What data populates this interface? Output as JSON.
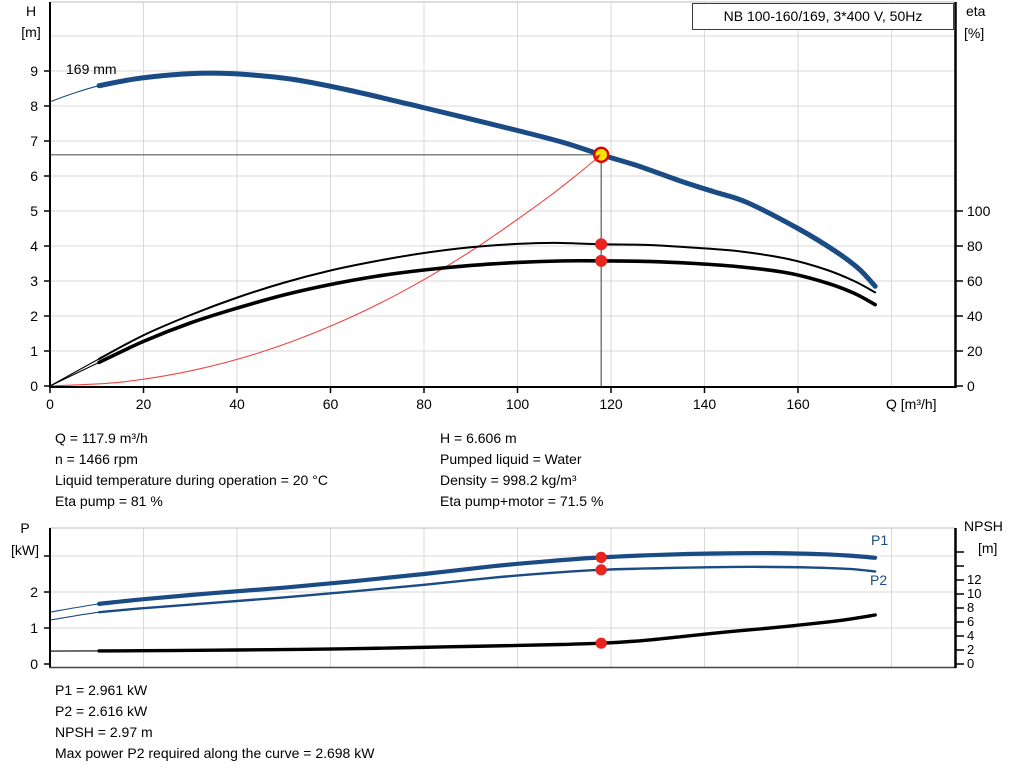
{
  "title_box": "NB 100-160/169, 3*400 V, 50Hz",
  "labels": {
    "h": "H",
    "h_unit": "[m]",
    "eta": "eta",
    "eta_unit": "[%]",
    "p": "P",
    "p_unit": "[kW]",
    "npsh": "NPSH",
    "npsh_unit": "[m]",
    "q_axis": "Q [m³/h]",
    "impeller": "169 mm",
    "p1": "P1",
    "p2": "P2"
  },
  "info": {
    "left": [
      "Q = 117.9 m³/h",
      "n = 1466 rpm",
      "Liquid temperature during operation = 20 °C",
      "Eta pump = 81 %"
    ],
    "right": [
      "H = 6.606 m",
      "Pumped liquid = Water",
      "Density = 998.2 kg/m³",
      "Eta pump+motor = 71.5 %"
    ]
  },
  "results": [
    "P1 = 2.961 kW",
    "P2 = 2.616 kW",
    "NPSH = 2.97 m",
    "Max power P2 required along the curve = 2.698 kW"
  ],
  "colors": {
    "curve_blue": "#1a4b85",
    "marker_red": "#e8251f",
    "duty_fill": "#f5e500",
    "duty_ring": "#dd0000",
    "system_red": "#ef4444",
    "grid": "#d9d9d9",
    "crosshair": "#5a5a5a",
    "black": "#000000"
  },
  "chart_data": [
    {
      "type": "line",
      "title": "NB 100-160/169, 3*400 V, 50Hz",
      "curve_label": "169 mm",
      "x_axis": {
        "label": "Q [m³/h]",
        "min": 0,
        "max": 193.6,
        "ticks": [
          0,
          20,
          40,
          60,
          80,
          100,
          120,
          140,
          160
        ],
        "gridlines": [
          20,
          40,
          60,
          80,
          100,
          120,
          140,
          160,
          180
        ]
      },
      "y_axis": {
        "label": "H [m]",
        "min": 0,
        "max": 11,
        "ticks": [
          0,
          1,
          2,
          3,
          4,
          5,
          6,
          7,
          8,
          9
        ],
        "gridlines": [
          1,
          2,
          3,
          4,
          5,
          6,
          7,
          8,
          9,
          10
        ]
      },
      "y2_axis": {
        "label": "eta [%]",
        "min": 0,
        "ticks": [
          0,
          20,
          40,
          60,
          80,
          100
        ]
      },
      "duty_point": {
        "Q": 117.9,
        "H": 6.606
      },
      "series": [
        {
          "name": "system-resistance-curve",
          "color": "#ef4444",
          "width": 1,
          "axis": "y",
          "points": [
            [
              0,
              0
            ],
            [
              15,
              0.11
            ],
            [
              30,
              0.43
            ],
            [
              45,
              0.96
            ],
            [
              60,
              1.71
            ],
            [
              75,
              2.67
            ],
            [
              90,
              3.85
            ],
            [
              105,
              5.24
            ],
            [
              112,
              5.96
            ],
            [
              117.9,
              6.606
            ]
          ]
        },
        {
          "name": "eta-pump-motor-curve",
          "color": "#000000",
          "width": 3.6,
          "thin_until": 10.5,
          "axis": "y2",
          "points": [
            [
              0,
              0
            ],
            [
              10.5,
              13.5
            ],
            [
              20,
              25.5
            ],
            [
              30,
              36
            ],
            [
              40,
              44.5
            ],
            [
              50,
              52
            ],
            [
              60,
              58
            ],
            [
              70,
              62.8
            ],
            [
              80,
              66.3
            ],
            [
              90,
              68.9
            ],
            [
              100,
              70.6
            ],
            [
              110,
              71.5
            ],
            [
              117.9,
              71.5
            ],
            [
              128,
              71.2
            ],
            [
              138,
              70
            ],
            [
              148,
              68
            ],
            [
              158,
              64.5
            ],
            [
              166,
              59
            ],
            [
              172,
              53
            ],
            [
              176.5,
              46.5
            ]
          ]
        },
        {
          "name": "eta-pump-curve",
          "color": "#000000",
          "width": 2,
          "thin_until": 10.5,
          "axis": "y2",
          "points": [
            [
              0,
              0
            ],
            [
              10.5,
              15.5
            ],
            [
              20,
              29
            ],
            [
              30,
              40.5
            ],
            [
              40,
              50.5
            ],
            [
              50,
              59
            ],
            [
              60,
              66
            ],
            [
              70,
              71.5
            ],
            [
              80,
              76
            ],
            [
              90,
              79.3
            ],
            [
              100,
              81.2
            ],
            [
              108,
              81.8
            ],
            [
              117.9,
              81
            ],
            [
              128,
              80.6
            ],
            [
              138,
              79
            ],
            [
              148,
              76.8
            ],
            [
              158,
              72.5
            ],
            [
              166,
              66.5
            ],
            [
              172,
              60
            ],
            [
              176.5,
              53.5
            ]
          ]
        },
        {
          "name": "head-curve",
          "color": "#1a4b85",
          "width": 5,
          "thin_until": 10.5,
          "axis": "y",
          "points": [
            [
              0,
              8.12
            ],
            [
              5,
              8.36
            ],
            [
              10.5,
              8.58
            ],
            [
              18,
              8.77
            ],
            [
              26,
              8.89
            ],
            [
              34,
              8.94
            ],
            [
              42,
              8.9
            ],
            [
              52,
              8.76
            ],
            [
              64,
              8.45
            ],
            [
              80,
              7.95
            ],
            [
              100,
              7.3
            ],
            [
              110,
              6.95
            ],
            [
              117.9,
              6.606
            ],
            [
              126,
              6.28
            ],
            [
              135,
              5.85
            ],
            [
              142,
              5.55
            ],
            [
              149,
              5.25
            ],
            [
              160,
              4.5
            ],
            [
              168,
              3.85
            ],
            [
              173,
              3.35
            ],
            [
              176.5,
              2.85
            ]
          ]
        }
      ],
      "markers": [
        {
          "name": "duty-point",
          "style": "ring",
          "axis": "y",
          "Q": 117.9,
          "v": 6.606
        },
        {
          "name": "eta-pump-point",
          "style": "dot",
          "axis": "y2",
          "Q": 117.9,
          "v": 81
        },
        {
          "name": "eta-pump-motor-point",
          "style": "dot",
          "axis": "y2",
          "Q": 117.9,
          "v": 71.5
        }
      ]
    },
    {
      "type": "line",
      "x_axis": {
        "label": "",
        "min": 0,
        "max": 193.6,
        "ticks": [],
        "gridlines": [
          20,
          40,
          60,
          80,
          100,
          120,
          140,
          160,
          180
        ]
      },
      "y_axis": {
        "label": "P [kW]",
        "min": 0,
        "max": 3.78,
        "ticks": [
          0,
          1,
          2,
          3
        ],
        "labeled_ticks": [
          0,
          1,
          2
        ],
        "gridlines": [
          1,
          2,
          3
        ]
      },
      "y2_axis": {
        "label": "NPSH [m]",
        "min": 0,
        "max": 16,
        "ticks": [
          0,
          2,
          4,
          6,
          8,
          10,
          12,
          14,
          16
        ],
        "labeled_ticks": [
          0,
          2,
          4,
          6,
          8,
          10,
          12
        ]
      },
      "series": [
        {
          "name": "npsh-curve",
          "color": "#000000",
          "width": 3.4,
          "thin_until": 10.5,
          "axis": "y2",
          "points": [
            [
              0,
              1.85
            ],
            [
              10.5,
              1.87
            ],
            [
              25,
              1.92
            ],
            [
              40,
              2.0
            ],
            [
              55,
              2.1
            ],
            [
              70,
              2.25
            ],
            [
              85,
              2.45
            ],
            [
              100,
              2.65
            ],
            [
              110,
              2.8
            ],
            [
              117.9,
              2.97
            ],
            [
              126,
              3.3
            ],
            [
              135,
              3.9
            ],
            [
              145,
              4.6
            ],
            [
              155,
              5.2
            ],
            [
              165,
              5.9
            ],
            [
              171,
              6.4
            ],
            [
              176.5,
              7.0
            ]
          ]
        },
        {
          "name": "p2-curve",
          "label": "P2",
          "color": "#1a4b85",
          "width": 2.4,
          "thin_until": 10.5,
          "axis": "y",
          "points": [
            [
              0,
              1.22
            ],
            [
              10.5,
              1.44
            ],
            [
              20,
              1.55
            ],
            [
              35,
              1.7
            ],
            [
              50,
              1.85
            ],
            [
              65,
              2.02
            ],
            [
              80,
              2.2
            ],
            [
              95,
              2.4
            ],
            [
              107,
              2.53
            ],
            [
              117.9,
              2.616
            ],
            [
              130,
              2.66
            ],
            [
              142,
              2.69
            ],
            [
              152,
              2.698
            ],
            [
              163,
              2.68
            ],
            [
              171,
              2.64
            ],
            [
              176.5,
              2.57
            ]
          ]
        },
        {
          "name": "p1-curve",
          "label": "P1",
          "color": "#1a4b85",
          "width": 4.2,
          "thin_until": 10.5,
          "axis": "y",
          "points": [
            [
              0,
              1.44
            ],
            [
              10.5,
              1.67
            ],
            [
              20,
              1.8
            ],
            [
              35,
              1.97
            ],
            [
              50,
              2.12
            ],
            [
              65,
              2.3
            ],
            [
              80,
              2.5
            ],
            [
              95,
              2.72
            ],
            [
              107,
              2.86
            ],
            [
              117.9,
              2.961
            ],
            [
              130,
              3.03
            ],
            [
              142,
              3.07
            ],
            [
              155,
              3.08
            ],
            [
              165,
              3.05
            ],
            [
              171,
              3.01
            ],
            [
              176.5,
              2.95
            ]
          ]
        }
      ],
      "markers": [
        {
          "name": "p1-point",
          "style": "dot",
          "axis": "y",
          "Q": 117.9,
          "v": 2.961
        },
        {
          "name": "p2-point",
          "style": "dot",
          "axis": "y",
          "Q": 117.9,
          "v": 2.616
        },
        {
          "name": "npsh-point",
          "style": "dot",
          "axis": "y2",
          "Q": 117.9,
          "v": 2.97
        }
      ]
    }
  ]
}
